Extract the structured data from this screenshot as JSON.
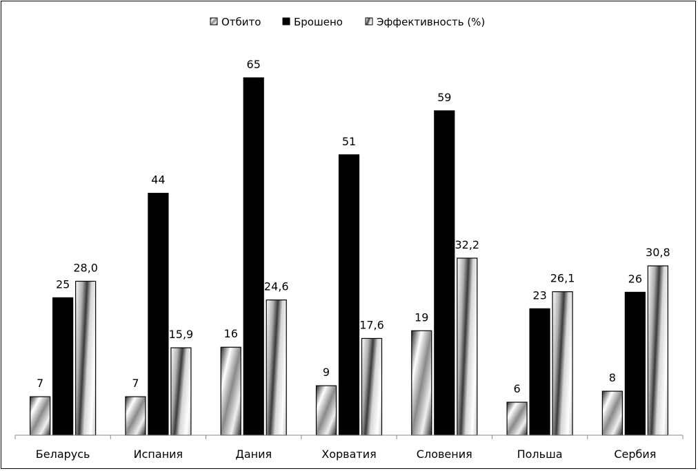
{
  "chart_data": {
    "type": "bar",
    "categories": [
      "Беларусь",
      "Испания",
      "Дания",
      "Хорватия",
      "Словения",
      "Польша",
      "Сербия"
    ],
    "series": [
      {
        "name": "Отбито",
        "values": [
          7,
          7,
          16,
          9,
          19,
          6,
          8
        ],
        "labels": [
          "7",
          "7",
          "16",
          "9",
          "19",
          "6",
          "8"
        ]
      },
      {
        "name": "Брошено",
        "values": [
          25,
          44,
          65,
          51,
          59,
          23,
          26
        ],
        "labels": [
          "25",
          "44",
          "65",
          "51",
          "59",
          "23",
          "26"
        ]
      },
      {
        "name": "Эффективность (%)",
        "values": [
          28.0,
          15.9,
          24.6,
          17.6,
          32.2,
          26.1,
          30.8
        ],
        "labels": [
          "28,0",
          "15,9",
          "24,6",
          "17,6",
          "32,2",
          "26,1",
          "30,8"
        ]
      }
    ],
    "ylim": [
      0,
      65
    ],
    "legend": "top",
    "grid": false,
    "colors": {
      "series_1": "#9a9a9a",
      "series_2": "#000000",
      "series_3": "#cfcfcf"
    }
  }
}
